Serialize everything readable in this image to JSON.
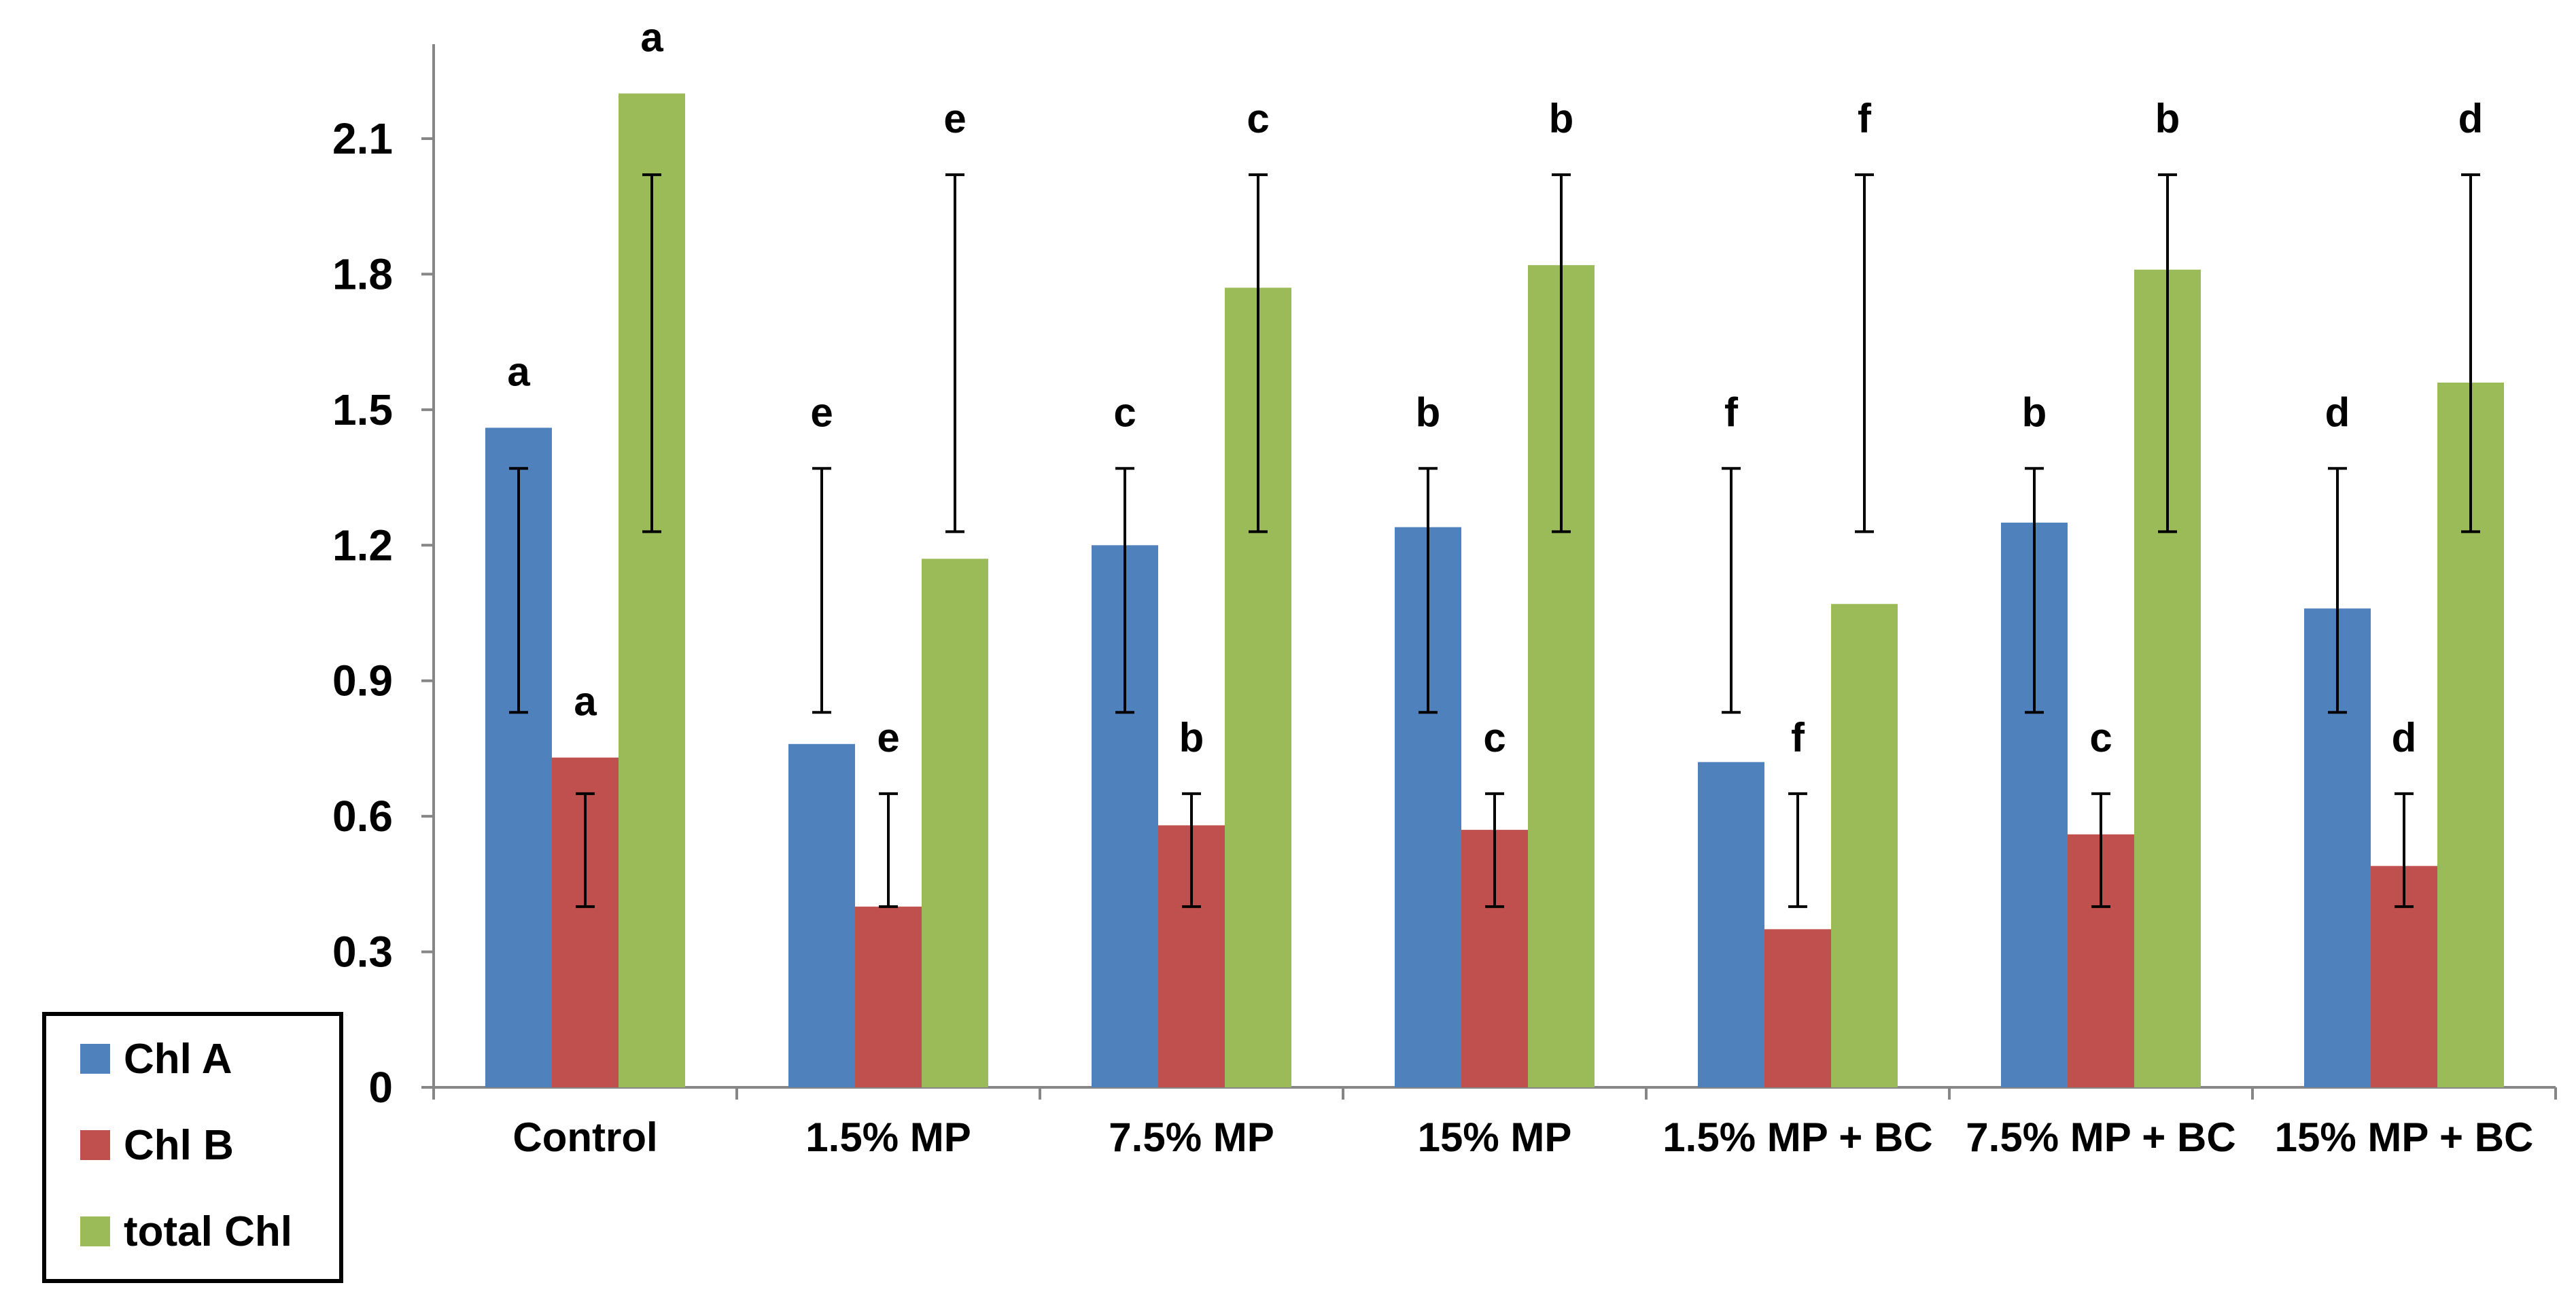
{
  "chart_data": {
    "type": "bar",
    "title": "",
    "xlabel": "",
    "ylabel": "",
    "ylim": [
      0,
      2.3
    ],
    "yticks": [
      "0",
      "0.3",
      "0.6",
      "0.9",
      "1.2",
      "1.5",
      "1.8",
      "2.1"
    ],
    "categories": [
      "Control",
      "1.5% MP",
      "7.5% MP",
      "15% MP",
      "1.5% MP + BC",
      "7.5% MP + BC",
      "15% MP + BC"
    ],
    "series": [
      {
        "name": "Chl A",
        "color": "#4F81BD",
        "values": [
          1.46,
          0.76,
          1.2,
          1.24,
          0.72,
          1.25,
          1.06
        ],
        "error_low": [
          0.83,
          0.83,
          0.83,
          0.83,
          0.83,
          0.83,
          0.83
        ],
        "error_high": [
          1.37,
          1.37,
          1.37,
          1.37,
          1.37,
          1.37,
          1.37
        ],
        "letters": [
          "a",
          "e",
          "c",
          "b",
          "f",
          "b",
          "d"
        ]
      },
      {
        "name": "Chl B",
        "color": "#C0504D",
        "values": [
          0.73,
          0.4,
          0.58,
          0.57,
          0.35,
          0.56,
          0.49
        ],
        "error_low": [
          0.4,
          0.4,
          0.4,
          0.4,
          0.4,
          0.4,
          0.4
        ],
        "error_high": [
          0.65,
          0.65,
          0.65,
          0.65,
          0.65,
          0.65,
          0.65
        ],
        "letters": [
          "a",
          "e",
          "b",
          "c",
          "f",
          "c",
          "d"
        ]
      },
      {
        "name": "total Chl",
        "color": "#9BBB59",
        "values": [
          2.2,
          1.17,
          1.77,
          1.82,
          1.07,
          1.81,
          1.56
        ],
        "error_low": [
          1.23,
          1.23,
          1.23,
          1.23,
          1.23,
          1.23,
          1.23
        ],
        "error_high": [
          2.02,
          2.02,
          2.02,
          2.02,
          2.02,
          2.02,
          2.02
        ],
        "letters": [
          "a",
          "e",
          "c",
          "b",
          "f",
          "b",
          "d"
        ]
      }
    ],
    "legend": {
      "placement": "bottom-left",
      "entries": [
        "Chl A",
        "Chl B",
        "total Chl"
      ]
    }
  }
}
